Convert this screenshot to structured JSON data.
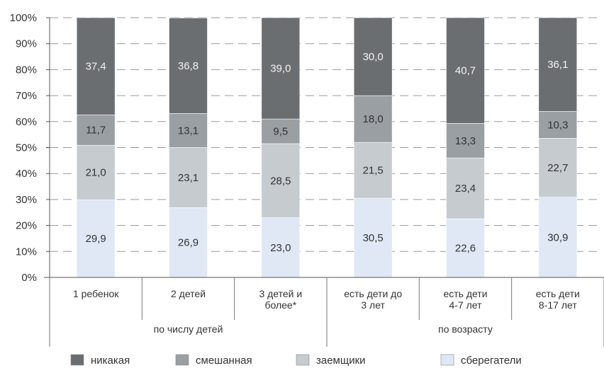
{
  "chart_data": {
    "type": "bar",
    "stacked": true,
    "percent": true,
    "categories": [
      "1 ребенок",
      "2 детей",
      "3 детей и\nболее*",
      "есть дети до\n3 лет",
      "есть дети\n4-7 лет",
      "есть дети\n8-17 лет"
    ],
    "groups": [
      {
        "label": "по числу детей",
        "count": 3
      },
      {
        "label": "по возрасту",
        "count": 3
      }
    ],
    "series": [
      {
        "name": "сберегатели",
        "color": "#dfe8f4",
        "values": [
          29.9,
          26.9,
          23.0,
          30.5,
          22.6,
          30.9
        ],
        "labels": [
          "29,9",
          "26,9",
          "23,0",
          "30,5",
          "22,6",
          "30,9"
        ]
      },
      {
        "name": "заемщики",
        "color": "#c6cbd0",
        "values": [
          21.0,
          23.1,
          28.5,
          21.5,
          23.4,
          22.7
        ],
        "labels": [
          "21,0",
          "23,1",
          "28,5",
          "21,5",
          "23,4",
          "22,7"
        ]
      },
      {
        "name": "смешанная",
        "color": "#9a9fa4",
        "values": [
          11.7,
          13.1,
          9.5,
          18.0,
          13.3,
          10.3
        ],
        "labels": [
          "11,7",
          "13,1",
          "9,5",
          "18,0",
          "13,3",
          "10,3"
        ]
      },
      {
        "name": "никакая",
        "color": "#6b6e71",
        "values": [
          37.4,
          36.8,
          39.0,
          30.0,
          40.7,
          36.1
        ],
        "labels": [
          "37,4",
          "36,8",
          "39,0",
          "30,0",
          "40,7",
          "36,1"
        ]
      }
    ],
    "legend_order": [
      "никакая",
      "смешанная",
      "заемщики",
      "сберегатели"
    ],
    "y_ticks": [
      "0%",
      "10%",
      "20%",
      "30%",
      "40%",
      "50%",
      "60%",
      "70%",
      "80%",
      "90%",
      "100%"
    ],
    "ylim": [
      0,
      100
    ],
    "grid": true,
    "legend_position": "bottom"
  }
}
